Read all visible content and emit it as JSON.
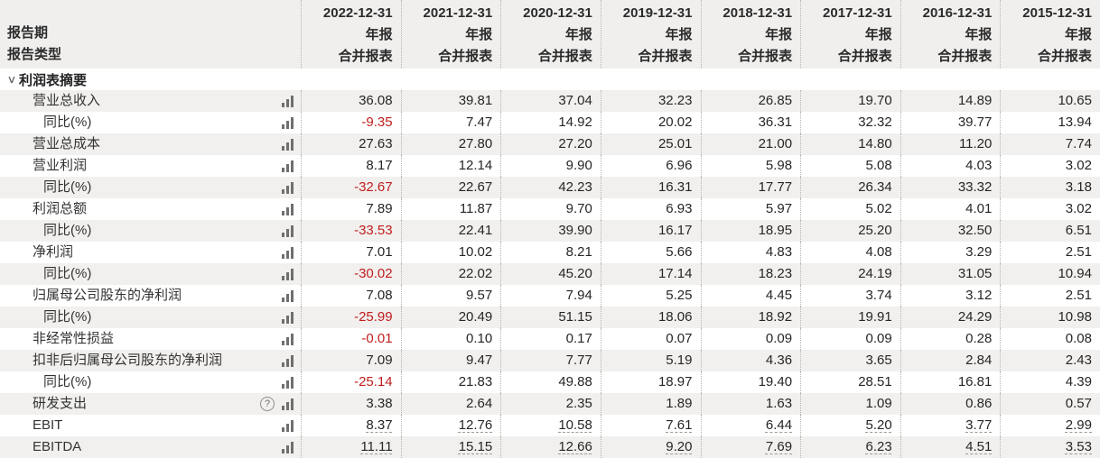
{
  "header": {
    "row_label_line1": "报告期",
    "row_label_line2": "报告类型",
    "columns": [
      {
        "date": "2022-12-31",
        "period": "年报",
        "type": "合并报表"
      },
      {
        "date": "2021-12-31",
        "period": "年报",
        "type": "合并报表"
      },
      {
        "date": "2020-12-31",
        "period": "年报",
        "type": "合并报表"
      },
      {
        "date": "2019-12-31",
        "period": "年报",
        "type": "合并报表"
      },
      {
        "date": "2018-12-31",
        "period": "年报",
        "type": "合并报表"
      },
      {
        "date": "2017-12-31",
        "period": "年报",
        "type": "合并报表"
      },
      {
        "date": "2016-12-31",
        "period": "年报",
        "type": "合并报表"
      },
      {
        "date": "2015-12-31",
        "period": "年报",
        "type": "合并报表"
      }
    ]
  },
  "section": {
    "title": "利润表摘要"
  },
  "icons": {
    "collapse_chevron": "∨",
    "help": "?",
    "chart": "bar-chart"
  },
  "rows": [
    {
      "label": "营业总收入",
      "indent": 1,
      "values": [
        "36.08",
        "39.81",
        "37.04",
        "32.23",
        "26.85",
        "19.70",
        "14.89",
        "10.65"
      ]
    },
    {
      "label": "同比(%)",
      "indent": 2,
      "values": [
        "-9.35",
        "7.47",
        "14.92",
        "20.02",
        "36.31",
        "32.32",
        "39.77",
        "13.94"
      ]
    },
    {
      "label": "营业总成本",
      "indent": 1,
      "values": [
        "27.63",
        "27.80",
        "27.20",
        "25.01",
        "21.00",
        "14.80",
        "11.20",
        "7.74"
      ]
    },
    {
      "label": "营业利润",
      "indent": 1,
      "values": [
        "8.17",
        "12.14",
        "9.90",
        "6.96",
        "5.98",
        "5.08",
        "4.03",
        "3.02"
      ]
    },
    {
      "label": "同比(%)",
      "indent": 2,
      "values": [
        "-32.67",
        "22.67",
        "42.23",
        "16.31",
        "17.77",
        "26.34",
        "33.32",
        "3.18"
      ]
    },
    {
      "label": "利润总额",
      "indent": 1,
      "values": [
        "7.89",
        "11.87",
        "9.70",
        "6.93",
        "5.97",
        "5.02",
        "4.01",
        "3.02"
      ]
    },
    {
      "label": "同比(%)",
      "indent": 2,
      "values": [
        "-33.53",
        "22.41",
        "39.90",
        "16.17",
        "18.95",
        "25.20",
        "32.50",
        "6.51"
      ]
    },
    {
      "label": "净利润",
      "indent": 1,
      "values": [
        "7.01",
        "10.02",
        "8.21",
        "5.66",
        "4.83",
        "4.08",
        "3.29",
        "2.51"
      ]
    },
    {
      "label": "同比(%)",
      "indent": 2,
      "values": [
        "-30.02",
        "22.02",
        "45.20",
        "17.14",
        "18.23",
        "24.19",
        "31.05",
        "10.94"
      ]
    },
    {
      "label": "归属母公司股东的净利润",
      "indent": 1,
      "values": [
        "7.08",
        "9.57",
        "7.94",
        "5.25",
        "4.45",
        "3.74",
        "3.12",
        "2.51"
      ]
    },
    {
      "label": "同比(%)",
      "indent": 2,
      "values": [
        "-25.99",
        "20.49",
        "51.15",
        "18.06",
        "18.92",
        "19.91",
        "24.29",
        "10.98"
      ]
    },
    {
      "label": "非经常性损益",
      "indent": 1,
      "values": [
        "-0.01",
        "0.10",
        "0.17",
        "0.07",
        "0.09",
        "0.09",
        "0.28",
        "0.08"
      ]
    },
    {
      "label": "扣非后归属母公司股东的净利润",
      "indent": 1,
      "values": [
        "7.09",
        "9.47",
        "7.77",
        "5.19",
        "4.36",
        "3.65",
        "2.84",
        "2.43"
      ]
    },
    {
      "label": "同比(%)",
      "indent": 2,
      "values": [
        "-25.14",
        "21.83",
        "49.88",
        "18.97",
        "19.40",
        "28.51",
        "16.81",
        "4.39"
      ]
    },
    {
      "label": "研发支出",
      "indent": 1,
      "help": true,
      "values": [
        "3.38",
        "2.64",
        "2.35",
        "1.89",
        "1.63",
        "1.09",
        "0.86",
        "0.57"
      ]
    },
    {
      "label": "EBIT",
      "indent": 1,
      "underline": true,
      "values": [
        "8.37",
        "12.76",
        "10.58",
        "7.61",
        "6.44",
        "5.20",
        "3.77",
        "2.99"
      ]
    },
    {
      "label": "EBITDA",
      "indent": 1,
      "underline": true,
      "values": [
        "11.11",
        "15.15",
        "12.66",
        "9.20",
        "7.69",
        "6.23",
        "4.51",
        "3.53"
      ]
    }
  ],
  "colors": {
    "negative": "#c01e1e",
    "stripe": "#f1f0ee",
    "header_bg": "#f0efee",
    "separator": "#b8b6b4",
    "icon": "#6f6f6f"
  }
}
